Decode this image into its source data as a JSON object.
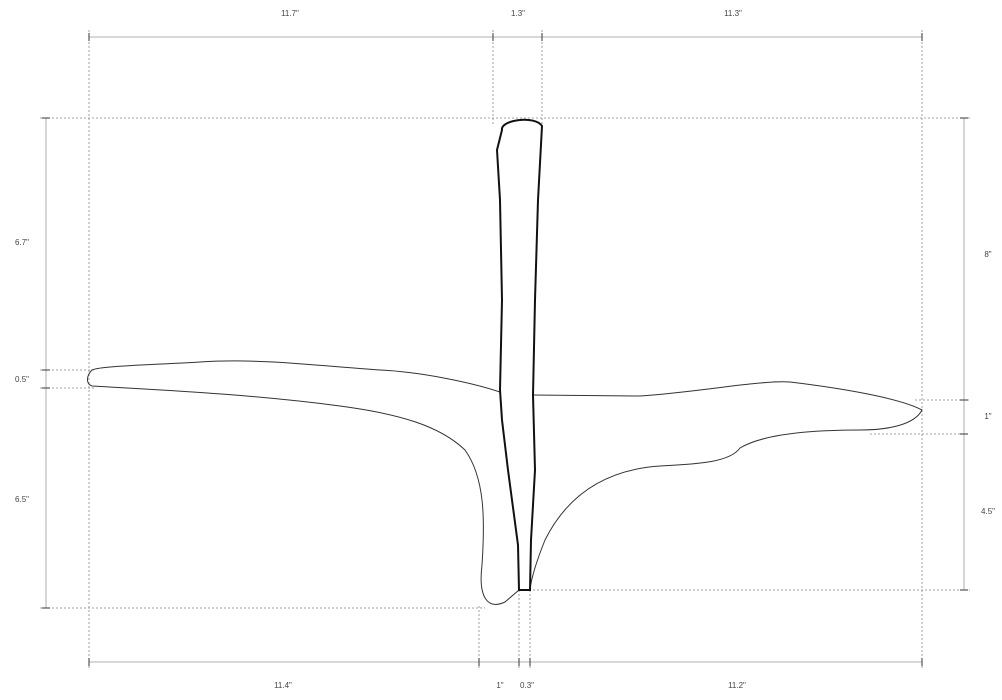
{
  "dimensions": {
    "top": [
      "11.7\"",
      "1.3\"",
      "11.3\""
    ],
    "left": [
      "6.7\"",
      "0.5\"",
      "6.5\""
    ],
    "right": [
      "8\"",
      "1\"",
      "4.5\""
    ],
    "bottom": [
      "11.4\"",
      "1\"",
      "0.3\"",
      "11.2\""
    ]
  }
}
